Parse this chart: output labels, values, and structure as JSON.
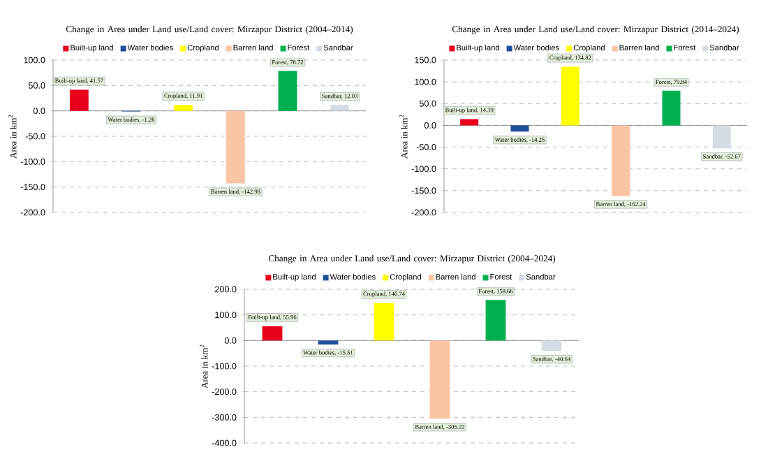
{
  "chart_data": [
    {
      "type": "bar",
      "title": "Change in Area under Land use/Land cover: Mirzapur District (2004–2014)",
      "ylabel": "Area in km$^{2}$",
      "categories": [
        null,
        null,
        null,
        null,
        null,
        null
      ],
      "ylim": [
        -200,
        100
      ],
      "yticks": [
        {
          "value": -200,
          "label": "-200.0"
        },
        {
          "value": -150,
          "label": "-150.0"
        },
        {
          "value": -100,
          "label": "-100.0"
        },
        {
          "value": -50,
          "label": "-50.0"
        },
        {
          "value": 0,
          "label": "0.0"
        },
        {
          "value": 50,
          "label": "50.0"
        },
        {
          "value": 100,
          "label": "100.0"
        }
      ],
      "grid": "y",
      "legend": "top",
      "series": [
        {
          "name": "Built-up land",
          "color": "#e8001c",
          "values": [
            41.57,
            null,
            null,
            null,
            null,
            null
          ],
          "value_labels": [
            "Built-up land, 41.57",
            null,
            null,
            null,
            null,
            null
          ]
        },
        {
          "name": "Water bodies",
          "color": "#1f4e9a",
          "values": [
            null,
            -1.26,
            null,
            null,
            null,
            null
          ],
          "value_labels": [
            null,
            "Water bodies, -1.26",
            null,
            null,
            null,
            null
          ]
        },
        {
          "name": "Cropland",
          "color": "#ffff00",
          "values": [
            null,
            null,
            11.91,
            null,
            null,
            null
          ],
          "value_labels": [
            null,
            null,
            "Cropland, 11.91",
            null,
            null,
            null
          ]
        },
        {
          "name": "Barren land",
          "color": "#fbc4a4",
          "values": [
            null,
            null,
            null,
            -142.98,
            null,
            null
          ],
          "value_labels": [
            null,
            null,
            null,
            "Barren land, -142.98",
            null,
            null
          ]
        },
        {
          "name": "Forest",
          "color": "#00b050",
          "values": [
            null,
            null,
            null,
            null,
            78.72,
            null
          ],
          "value_labels": [
            null,
            null,
            null,
            null,
            "Forest, 78.72",
            null
          ]
        },
        {
          "name": "Sandbar",
          "color": "#d6dce4",
          "values": [
            null,
            null,
            null,
            null,
            null,
            12.03
          ],
          "value_labels": [
            null,
            null,
            null,
            null,
            null,
            "Sandbar, 12.03"
          ]
        }
      ]
    },
    {
      "type": "bar",
      "title": "Change in Area under Land use/Land cover: Mirzapur District (2014–2024)",
      "ylabel": "Area in km$^{2}$",
      "categories": [
        null,
        null,
        null,
        null,
        null,
        null
      ],
      "ylim": [
        -200,
        150
      ],
      "yticks": [
        {
          "value": -200,
          "label": "-200.0"
        },
        {
          "value": -150,
          "label": "-150.0"
        },
        {
          "value": -100,
          "label": "-100.0"
        },
        {
          "value": -50,
          "label": "-50.0"
        },
        {
          "value": 0,
          "label": "0.0"
        },
        {
          "value": 50,
          "label": "50.0"
        },
        {
          "value": 100,
          "label": "100.0"
        },
        {
          "value": 150,
          "label": "150.0"
        }
      ],
      "grid": "y",
      "legend": "top",
      "series": [
        {
          "name": "Built-up land",
          "color": "#e8001c",
          "values": [
            14.39,
            null,
            null,
            null,
            null,
            null
          ],
          "value_labels": [
            "Built-up land, 14.39",
            null,
            null,
            null,
            null,
            null
          ]
        },
        {
          "name": "Water bodies",
          "color": "#1f4e9a",
          "values": [
            null,
            -14.25,
            null,
            null,
            null,
            null
          ],
          "value_labels": [
            null,
            "Water bodies, -14.25",
            null,
            null,
            null,
            null
          ]
        },
        {
          "name": "Cropland",
          "color": "#ffff00",
          "values": [
            null,
            null,
            134.82,
            null,
            null,
            null
          ],
          "value_labels": [
            null,
            null,
            "Cropland, 134.82",
            null,
            null,
            null
          ]
        },
        {
          "name": "Barren land",
          "color": "#fbc4a4",
          "values": [
            null,
            null,
            null,
            -162.24,
            null,
            null
          ],
          "value_labels": [
            null,
            null,
            null,
            "Barren land, -162.24",
            null,
            null
          ]
        },
        {
          "name": "Forest",
          "color": "#00b050",
          "values": [
            null,
            null,
            null,
            null,
            79.84,
            null
          ],
          "value_labels": [
            null,
            null,
            null,
            null,
            "Forest, 79.84",
            null
          ]
        },
        {
          "name": "Sandbar",
          "color": "#d6dce4",
          "values": [
            null,
            null,
            null,
            null,
            null,
            -52.67
          ],
          "value_labels": [
            null,
            null,
            null,
            null,
            null,
            "Sandbar, -52.67"
          ]
        }
      ]
    },
    {
      "type": "bar",
      "title": "Change in Area under Land use/Land cover: Mirzapur District (2004–2024)",
      "ylabel": "Area in km$^{2}$",
      "categories": [
        null,
        null,
        null,
        null,
        null,
        null
      ],
      "ylim": [
        -400,
        200
      ],
      "yticks": [
        {
          "value": -400,
          "label": "-400.0"
        },
        {
          "value": -300,
          "label": "-300.0"
        },
        {
          "value": -200,
          "label": "-200.0"
        },
        {
          "value": -100,
          "label": "-100.0"
        },
        {
          "value": 0,
          "label": "0.0"
        },
        {
          "value": 100,
          "label": "100.0"
        },
        {
          "value": 200,
          "label": "200.0"
        }
      ],
      "grid": "y",
      "legend": "top",
      "series": [
        {
          "name": "Built-up land",
          "color": "#e8001c",
          "values": [
            55.96,
            null,
            null,
            null,
            null,
            null
          ],
          "value_labels": [
            "Built-up land, 55.96",
            null,
            null,
            null,
            null,
            null
          ]
        },
        {
          "name": "Water bodies",
          "color": "#1f4e9a",
          "values": [
            null,
            -15.51,
            null,
            null,
            null,
            null
          ],
          "value_labels": [
            null,
            "Water bodies, -15.51",
            null,
            null,
            null,
            null
          ]
        },
        {
          "name": "Cropland",
          "color": "#ffff00",
          "values": [
            null,
            null,
            146.74,
            null,
            null,
            null
          ],
          "value_labels": [
            null,
            null,
            "Cropland, 146.74",
            null,
            null,
            null
          ]
        },
        {
          "name": "Barren land",
          "color": "#fbc4a4",
          "values": [
            null,
            null,
            null,
            -305.22,
            null,
            null
          ],
          "value_labels": [
            null,
            null,
            null,
            "Barren land, -305.22",
            null,
            null
          ]
        },
        {
          "name": "Forest",
          "color": "#00b050",
          "values": [
            null,
            null,
            null,
            null,
            158.66,
            null
          ],
          "value_labels": [
            null,
            null,
            null,
            null,
            "Forest, 158.66",
            null
          ]
        },
        {
          "name": "Sandbar",
          "color": "#d6dce4",
          "values": [
            null,
            null,
            null,
            null,
            null,
            -40.64
          ],
          "value_labels": [
            null,
            null,
            null,
            null,
            null,
            "Sandbar, -40.64"
          ]
        }
      ]
    }
  ]
}
